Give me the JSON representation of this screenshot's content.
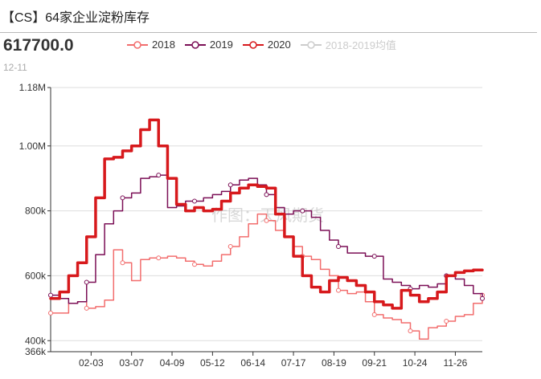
{
  "header": {
    "title": "【CS】64家企业淀粉库存",
    "current_value": "617700.0",
    "current_date": "12-11"
  },
  "legend": [
    {
      "label": "2018",
      "color": "#f26d6d",
      "active": true
    },
    {
      "label": "2019",
      "color": "#7b0f56",
      "active": true
    },
    {
      "label": "2020",
      "color": "#d7191c",
      "active": true
    },
    {
      "label": "2018-2019均值",
      "color": "#cccccc",
      "active": false
    }
  ],
  "watermark": "作图：天风期货",
  "colors": {
    "grid": "#dddddd",
    "axis": "#333333",
    "text": "#333333"
  },
  "chart_data": {
    "type": "line",
    "title": "【CS】64家企业淀粉库存",
    "xlabel": "",
    "ylabel": "",
    "ylim": [
      366000,
      1180000
    ],
    "yticks": [
      {
        "value": 366000,
        "label": "366k"
      },
      {
        "value": 400000,
        "label": "400k"
      },
      {
        "value": 600000,
        "label": "600k"
      },
      {
        "value": 800000,
        "label": "800k"
      },
      {
        "value": 1000000,
        "label": "1.00M"
      },
      {
        "value": 1180000,
        "label": "1.18M"
      }
    ],
    "xlim": [
      0,
      48
    ],
    "xticks": [
      {
        "value": 4.5,
        "label": "02-03"
      },
      {
        "value": 9,
        "label": "03-07"
      },
      {
        "value": 13.5,
        "label": "04-09"
      },
      {
        "value": 18,
        "label": "05-12"
      },
      {
        "value": 22.5,
        "label": "06-14"
      },
      {
        "value": 27,
        "label": "07-17"
      },
      {
        "value": 31.5,
        "label": "08-19"
      },
      {
        "value": 36,
        "label": "09-21"
      },
      {
        "value": 40.5,
        "label": "10-24"
      },
      {
        "value": 45,
        "label": "11-26"
      }
    ],
    "grid": true,
    "series": [
      {
        "name": "2018",
        "color": "#f26d6d",
        "width": 1.5,
        "values": [
          485000,
          485000,
          515000,
          520000,
          500000,
          505000,
          525000,
          680000,
          640000,
          585000,
          650000,
          655000,
          655000,
          660000,
          655000,
          645000,
          635000,
          630000,
          645000,
          665000,
          690000,
          720000,
          760000,
          790000,
          770000,
          740000,
          720000,
          690000,
          660000,
          650000,
          620000,
          600000,
          555000,
          545000,
          550000,
          520000,
          480000,
          470000,
          465000,
          455000,
          430000,
          405000,
          440000,
          445000,
          460000,
          475000,
          480000,
          515000,
          540000
        ]
      },
      {
        "name": "2019",
        "color": "#7b0f56",
        "width": 1.5,
        "values": [
          540000,
          530000,
          515000,
          520000,
          580000,
          665000,
          760000,
          800000,
          840000,
          855000,
          900000,
          905000,
          910000,
          810000,
          815000,
          830000,
          830000,
          840000,
          850000,
          860000,
          880000,
          895000,
          900000,
          880000,
          850000,
          810000,
          790000,
          800000,
          800000,
          780000,
          740000,
          710000,
          690000,
          670000,
          670000,
          660000,
          660000,
          590000,
          580000,
          570000,
          560000,
          570000,
          565000,
          575000,
          600000,
          590000,
          570000,
          545000,
          530000
        ]
      },
      {
        "name": "2020",
        "color": "#d7191c",
        "width": 3.5,
        "values": [
          530000,
          550000,
          600000,
          640000,
          720000,
          840000,
          960000,
          965000,
          985000,
          1000000,
          1050000,
          1080000,
          1000000,
          900000,
          820000,
          800000,
          810000,
          800000,
          805000,
          830000,
          855000,
          870000,
          880000,
          875000,
          870000,
          790000,
          720000,
          660000,
          600000,
          565000,
          550000,
          585000,
          595000,
          585000,
          570000,
          550000,
          520000,
          510000,
          500000,
          555000,
          540000,
          520000,
          530000,
          550000,
          600000,
          610000,
          615000,
          617700
        ]
      }
    ]
  }
}
